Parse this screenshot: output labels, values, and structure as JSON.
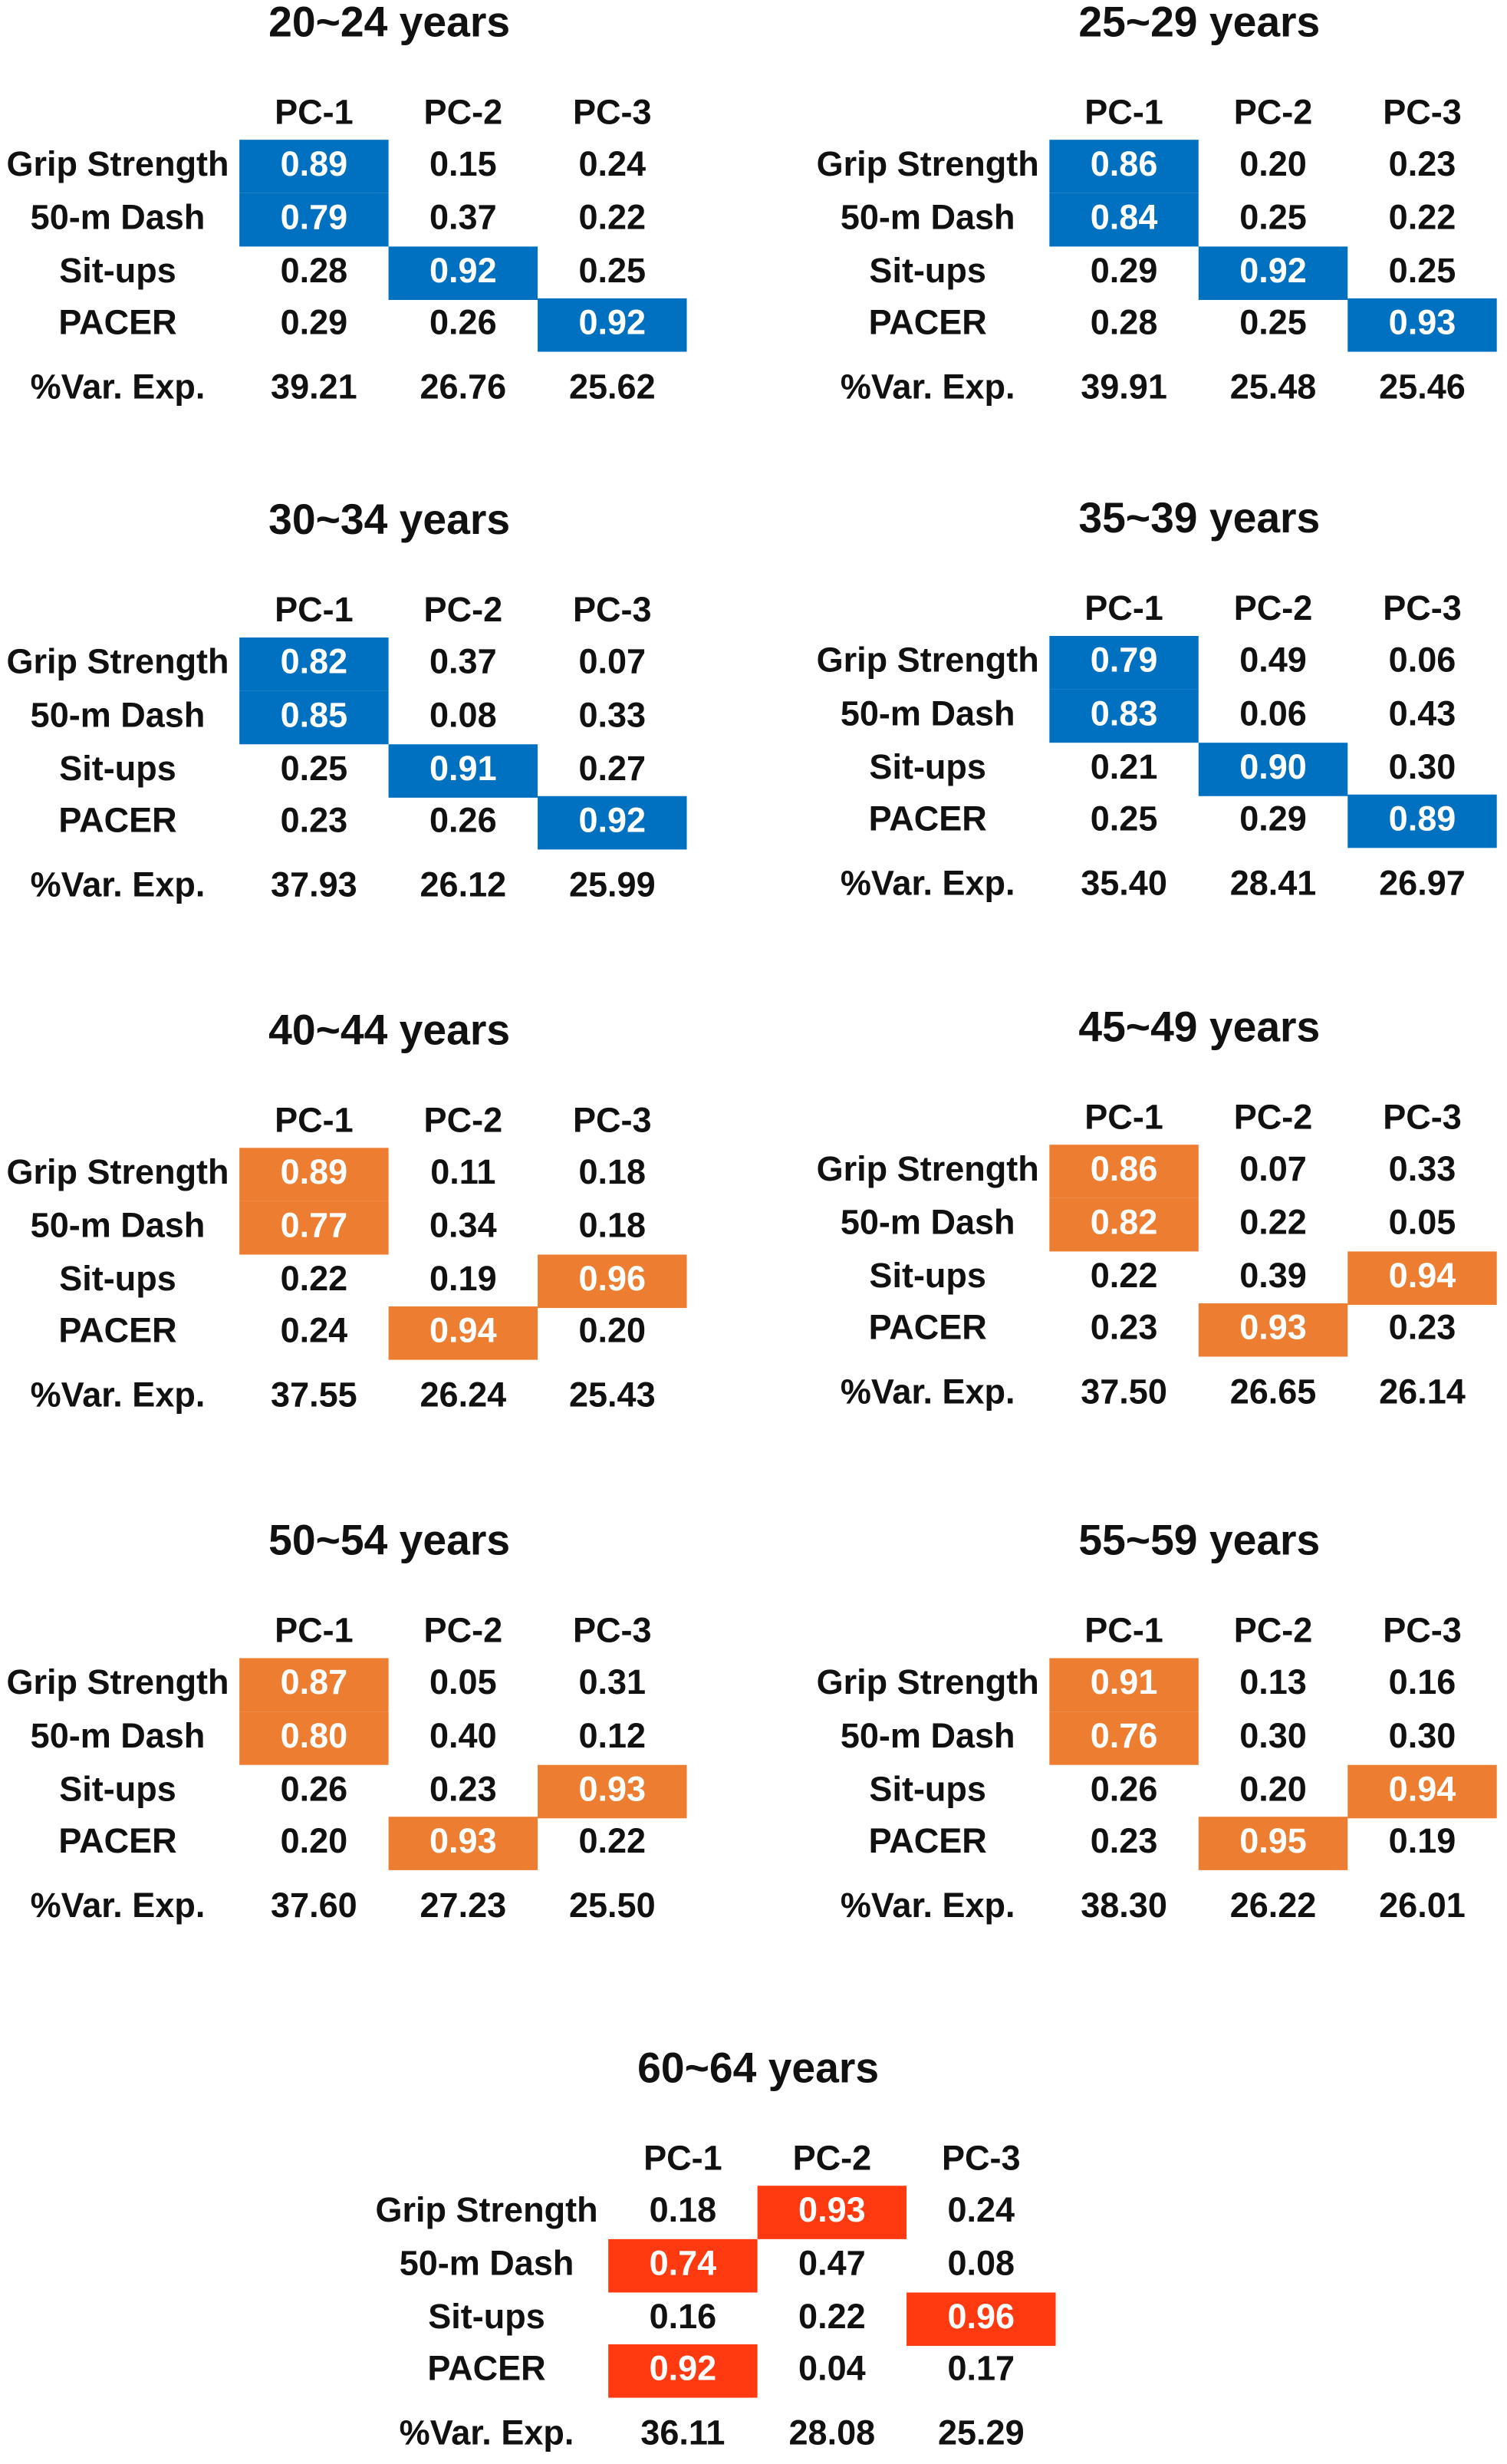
{
  "columns": [
    "PC-1",
    "PC-2",
    "PC-3"
  ],
  "row_labels": [
    "Grip Strength",
    "50-m Dash",
    "Sit-ups",
    "PACER"
  ],
  "variance_label": "%Var. Exp.",
  "panels": [
    {
      "title": "20~24 years",
      "color": "#0070c0",
      "highlight": [
        0,
        0,
        1,
        2
      ],
      "rows": [
        [
          "0.89",
          "0.15",
          "0.24"
        ],
        [
          "0.79",
          "0.37",
          "0.22"
        ],
        [
          "0.28",
          "0.92",
          "0.25"
        ],
        [
          "0.29",
          "0.26",
          "0.92"
        ]
      ],
      "variance": [
        "39.21",
        "26.76",
        "25.62"
      ]
    },
    {
      "title": "25~29 years",
      "color": "#0070c0",
      "highlight": [
        0,
        0,
        1,
        2
      ],
      "rows": [
        [
          "0.86",
          "0.20",
          "0.23"
        ],
        [
          "0.84",
          "0.25",
          "0.22"
        ],
        [
          "0.29",
          "0.92",
          "0.25"
        ],
        [
          "0.28",
          "0.25",
          "0.93"
        ]
      ],
      "variance": [
        "39.91",
        "25.48",
        "25.46"
      ]
    },
    {
      "title": "30~34 years",
      "color": "#0070c0",
      "highlight": [
        0,
        0,
        1,
        2
      ],
      "rows": [
        [
          "0.82",
          "0.37",
          "0.07"
        ],
        [
          "0.85",
          "0.08",
          "0.33"
        ],
        [
          "0.25",
          "0.91",
          "0.27"
        ],
        [
          "0.23",
          "0.26",
          "0.92"
        ]
      ],
      "variance": [
        "37.93",
        "26.12",
        "25.99"
      ]
    },
    {
      "title": "35~39 years",
      "color": "#0070c0",
      "highlight": [
        0,
        0,
        1,
        2
      ],
      "rows": [
        [
          "0.79",
          "0.49",
          "0.06"
        ],
        [
          "0.83",
          "0.06",
          "0.43"
        ],
        [
          "0.21",
          "0.90",
          "0.30"
        ],
        [
          "0.25",
          "0.29",
          "0.89"
        ]
      ],
      "variance": [
        "35.40",
        "28.41",
        "26.97"
      ]
    },
    {
      "title": "40~44 years",
      "color": "#ed7d31",
      "highlight": [
        0,
        0,
        2,
        1
      ],
      "rows": [
        [
          "0.89",
          "0.11",
          "0.18"
        ],
        [
          "0.77",
          "0.34",
          "0.18"
        ],
        [
          "0.22",
          "0.19",
          "0.96"
        ],
        [
          "0.24",
          "0.94",
          "0.20"
        ]
      ],
      "variance": [
        "37.55",
        "26.24",
        "25.43"
      ]
    },
    {
      "title": "45~49 years",
      "color": "#ed7d31",
      "highlight": [
        0,
        0,
        2,
        1
      ],
      "rows": [
        [
          "0.86",
          "0.07",
          "0.33"
        ],
        [
          "0.82",
          "0.22",
          "0.05"
        ],
        [
          "0.22",
          "0.39",
          "0.94"
        ],
        [
          "0.23",
          "0.93",
          "0.23"
        ]
      ],
      "variance": [
        "37.50",
        "26.65",
        "26.14"
      ]
    },
    {
      "title": "50~54 years",
      "color": "#ed7d31",
      "highlight": [
        0,
        0,
        2,
        1
      ],
      "rows": [
        [
          "0.87",
          "0.05",
          "0.31"
        ],
        [
          "0.80",
          "0.40",
          "0.12"
        ],
        [
          "0.26",
          "0.23",
          "0.93"
        ],
        [
          "0.20",
          "0.93",
          "0.22"
        ]
      ],
      "variance": [
        "37.60",
        "27.23",
        "25.50"
      ]
    },
    {
      "title": "55~59 years",
      "color": "#ed7d31",
      "highlight": [
        0,
        0,
        2,
        1
      ],
      "rows": [
        [
          "0.91",
          "0.13",
          "0.16"
        ],
        [
          "0.76",
          "0.30",
          "0.30"
        ],
        [
          "0.26",
          "0.20",
          "0.94"
        ],
        [
          "0.23",
          "0.95",
          "0.19"
        ]
      ],
      "variance": [
        "38.30",
        "26.22",
        "26.01"
      ]
    },
    {
      "title": "60~64 years",
      "color": "#ff3a10",
      "highlight": [
        1,
        0,
        2,
        0
      ],
      "rows": [
        [
          "0.18",
          "0.93",
          "0.24"
        ],
        [
          "0.74",
          "0.47",
          "0.08"
        ],
        [
          "0.16",
          "0.22",
          "0.96"
        ],
        [
          "0.92",
          "0.04",
          "0.17"
        ]
      ],
      "variance": [
        "36.11",
        "28.08",
        "25.29"
      ]
    }
  ]
}
